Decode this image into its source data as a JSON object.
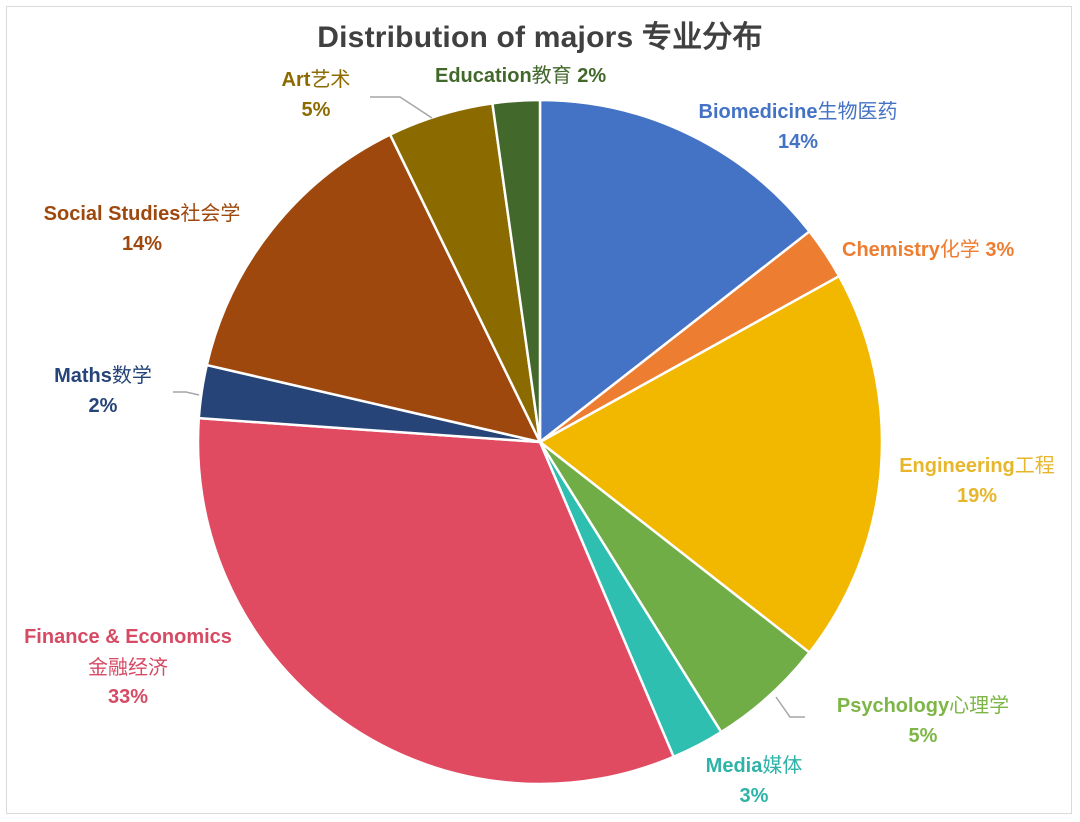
{
  "chart_data": {
    "type": "pie",
    "title": "Distribution of majors 专业分布",
    "start_angle_deg": 0,
    "direction": "clockwise",
    "slices": [
      {
        "name": "Biomedicine",
        "name_cn": "生物医药",
        "value": 14,
        "label": "14%",
        "color": "#4472C4",
        "end_deg": 52
      },
      {
        "name": "Chemistry",
        "name_cn": "化学",
        "value": 3,
        "label": "3%",
        "color": "#ED7D31",
        "end_deg": 61
      },
      {
        "name": "Engineering",
        "name_cn": "工程",
        "value": 19,
        "label": "19%",
        "color": "#F2B800",
        "end_deg": 128
      },
      {
        "name": "Psychology",
        "name_cn": "心理学",
        "value": 5,
        "label": "5%",
        "color": "#70AD47",
        "end_deg": 148
      },
      {
        "name": "Media",
        "name_cn": "媒体",
        "value": 3,
        "label": "3%",
        "color": "#2EBFB0",
        "end_deg": 157
      },
      {
        "name": "Finance & Economics",
        "name_cn": "金融经济",
        "value": 33,
        "label": "33%",
        "color": "#E04B62",
        "end_deg": 274
      },
      {
        "name": "Maths",
        "name_cn": "数学",
        "value": 2,
        "label": "2%",
        "color": "#264478",
        "end_deg": 283
      },
      {
        "name": "Social Studies",
        "name_cn": "社会学",
        "value": 14,
        "label": "14%",
        "color": "#9E480E",
        "end_deg": 334
      },
      {
        "name": "Art",
        "name_cn": "艺术",
        "value": 5,
        "label": "5%",
        "color": "#8B6B00",
        "end_deg": 352
      },
      {
        "name": "Education",
        "name_cn": "教育",
        "value": 2,
        "label": "2%",
        "color": "#43682B",
        "end_deg": 360
      }
    ],
    "legend": "none (data labels with leader lines)"
  },
  "labels": {
    "biomedicine": {
      "en": "Biomedicine",
      "cn": "生物医药",
      "pct": "14%"
    },
    "chemistry": {
      "en": "Chemistry",
      "cn": "化学",
      "pct": "3%"
    },
    "engineering": {
      "en": "Engineering",
      "cn": "工程",
      "pct": "19%"
    },
    "psychology": {
      "en": "Psychology",
      "cn": "心理学",
      "pct": "5%"
    },
    "media": {
      "en": "Media",
      "cn": "媒体",
      "pct": "3%"
    },
    "finance": {
      "en": "Finance & Economics",
      "cn": "金融经济",
      "pct": "33%"
    },
    "maths": {
      "en": "Maths",
      "cn": "数学",
      "pct": "2%"
    },
    "social": {
      "en": "Social Studies",
      "cn": "社会学",
      "pct": "14%"
    },
    "art": {
      "en": "Art",
      "cn": "艺术",
      "pct": "5%"
    },
    "education": {
      "en": "Education",
      "cn": "教育",
      "pct": "2%"
    }
  },
  "title": "Distribution of majors 专业分布"
}
